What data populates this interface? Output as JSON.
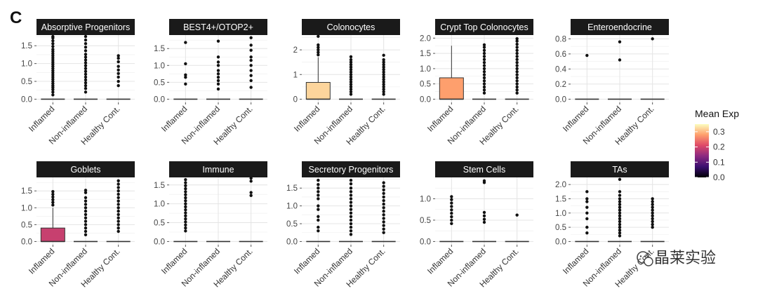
{
  "panel_label": "C",
  "legend": {
    "title": "Mean Exp",
    "ticks": [
      "0.3",
      "0.2",
      "0.1",
      "0.0"
    ],
    "range": [
      0,
      0.35
    ],
    "tick_values": [
      0.3,
      0.2,
      0.1,
      0.0
    ],
    "colors": [
      "#000004",
      "#3b0f70",
      "#8c2981",
      "#de4968",
      "#fe9f6d",
      "#fcfdbf"
    ]
  },
  "watermark": {
    "text": "晶莱实验"
  },
  "chart_data": [
    {
      "type": "box",
      "title": "Absorptive Progenitors",
      "categories": [
        "Inflamed",
        "Non-inflamed",
        "Healthy Cont."
      ],
      "ylim": [
        0,
        1.8
      ],
      "yticks": [
        "0.0",
        "0.5",
        "1.0",
        "1.5"
      ],
      "ytick_values": [
        0,
        0.5,
        1.0,
        1.5
      ],
      "boxes": [
        {
          "q1": 0,
          "median": 0,
          "q3": 0,
          "whisker_hi": 0,
          "mean_exp": 0.02,
          "outliers": [
            0.12,
            0.2,
            0.27,
            0.33,
            0.38,
            0.44,
            0.5,
            0.56,
            0.62,
            0.68,
            0.74,
            0.8,
            0.86,
            0.92,
            0.98,
            1.04,
            1.1,
            1.16,
            1.22,
            1.28,
            1.34,
            1.4,
            1.48,
            1.56,
            1.64,
            1.72,
            1.76
          ]
        },
        {
          "q1": 0,
          "median": 0,
          "q3": 0,
          "whisker_hi": 0,
          "mean_exp": 0.02,
          "outliers": [
            0.2,
            0.3,
            0.38,
            0.46,
            0.54,
            0.62,
            0.7,
            0.78,
            0.86,
            0.94,
            1.02,
            1.1,
            1.18,
            1.26,
            1.36,
            1.46,
            1.56,
            1.66,
            1.76
          ]
        },
        {
          "q1": 0,
          "median": 0,
          "q3": 0,
          "whisker_hi": 0,
          "mean_exp": 0.02,
          "outliers": [
            0.38,
            0.5,
            0.62,
            0.72,
            0.82,
            0.92,
            1.05,
            1.15,
            1.22
          ]
        }
      ]
    },
    {
      "type": "box",
      "title": "BEST4+/OTOP2+",
      "categories": [
        "Inflamed",
        "Non-inflamed",
        "Healthy Cont."
      ],
      "ylim": [
        0,
        1.9
      ],
      "yticks": [
        "0.0",
        "0.5",
        "1.0",
        "1.5"
      ],
      "ytick_values": [
        0,
        0.5,
        1.0,
        1.5
      ],
      "boxes": [
        {
          "q1": 0,
          "median": 0,
          "q3": 0,
          "whisker_hi": 0,
          "mean_exp": 0.02,
          "outliers": [
            0.45,
            0.65,
            0.72,
            1.05,
            1.68
          ]
        },
        {
          "q1": 0,
          "median": 0,
          "q3": 0,
          "whisker_hi": 0,
          "mean_exp": 0.02,
          "outliers": [
            0.3,
            0.45,
            0.55,
            0.65,
            0.75,
            0.85,
            1.0,
            1.1,
            1.25,
            1.72
          ]
        },
        {
          "q1": 0,
          "median": 0,
          "q3": 0,
          "whisker_hi": 0,
          "mean_exp": 0.02,
          "outliers": [
            0.35,
            0.55,
            0.7,
            0.85,
            1.0,
            1.15,
            1.25,
            1.45,
            1.6,
            1.82
          ]
        }
      ]
    },
    {
      "type": "box",
      "title": "Colonocytes",
      "categories": [
        "Inflamed",
        "Non-inflamed",
        "Healthy Cont."
      ],
      "ylim": [
        0,
        2.6
      ],
      "yticks": [
        "0",
        "1",
        "2"
      ],
      "ytick_values": [
        0,
        1,
        2
      ],
      "boxes": [
        {
          "q1": 0,
          "median": 0,
          "q3": 0.68,
          "whisker_hi": 1.7,
          "mean_exp": 0.32,
          "outliers": [
            1.8,
            1.9,
            2.0,
            2.1,
            2.2,
            2.55
          ]
        },
        {
          "q1": 0,
          "median": 0,
          "q3": 0,
          "whisker_hi": 0,
          "mean_exp": 0.05,
          "outliers": [
            0.2,
            0.3,
            0.4,
            0.5,
            0.6,
            0.7,
            0.8,
            0.9,
            1.0,
            1.1,
            1.2,
            1.3,
            1.4,
            1.5,
            1.6,
            1.72
          ]
        },
        {
          "q1": 0,
          "median": 0,
          "q3": 0,
          "whisker_hi": 0,
          "mean_exp": 0.05,
          "outliers": [
            0.2,
            0.3,
            0.4,
            0.5,
            0.6,
            0.7,
            0.8,
            0.9,
            1.0,
            1.1,
            1.2,
            1.3,
            1.4,
            1.5,
            1.6,
            1.78
          ]
        }
      ]
    },
    {
      "type": "box",
      "title": "Crypt Top Colonocytes",
      "categories": [
        "Inflamed",
        "Non-inflamed",
        "Healthy Cont."
      ],
      "ylim": [
        0,
        2.1
      ],
      "yticks": [
        "0.0",
        "0.5",
        "1.0",
        "1.5",
        "2.0"
      ],
      "ytick_values": [
        0,
        0.5,
        1.0,
        1.5,
        2.0
      ],
      "boxes": [
        {
          "q1": 0,
          "median": 0,
          "q3": 0.7,
          "whisker_hi": 1.75,
          "mean_exp": 0.28,
          "outliers": []
        },
        {
          "q1": 0,
          "median": 0,
          "q3": 0,
          "whisker_hi": 0,
          "mean_exp": 0.05,
          "outliers": [
            0.2,
            0.3,
            0.4,
            0.5,
            0.6,
            0.7,
            0.8,
            0.9,
            1.0,
            1.1,
            1.2,
            1.3,
            1.4,
            1.5,
            1.6,
            1.7,
            1.78
          ]
        },
        {
          "q1": 0,
          "median": 0,
          "q3": 0,
          "whisker_hi": 0,
          "mean_exp": 0.05,
          "outliers": [
            0.2,
            0.3,
            0.4,
            0.5,
            0.6,
            0.7,
            0.8,
            0.9,
            1.0,
            1.1,
            1.2,
            1.3,
            1.4,
            1.5,
            1.6,
            1.7,
            1.8,
            1.9,
            1.98
          ]
        }
      ]
    },
    {
      "type": "box",
      "title": "Enteroendocrine",
      "categories": [
        "Inflamed",
        "Non-inflamed",
        "Healthy Cont."
      ],
      "ylim": [
        0,
        0.85
      ],
      "yticks": [
        "0.0",
        "0.2",
        "0.4",
        "0.6",
        "0.8"
      ],
      "ytick_values": [
        0,
        0.2,
        0.4,
        0.6,
        0.8
      ],
      "boxes": [
        {
          "q1": 0,
          "median": 0,
          "q3": 0,
          "whisker_hi": 0,
          "mean_exp": 0.01,
          "outliers": [
            0.58
          ]
        },
        {
          "q1": 0,
          "median": 0,
          "q3": 0,
          "whisker_hi": 0,
          "mean_exp": 0.01,
          "outliers": [
            0.52,
            0.76
          ]
        },
        {
          "q1": 0,
          "median": 0,
          "q3": 0,
          "whisker_hi": 0,
          "mean_exp": 0.01,
          "outliers": [
            0.8
          ]
        }
      ]
    },
    {
      "type": "box",
      "title": "Goblets",
      "categories": [
        "Inflamed",
        "Non-inflamed",
        "Healthy Cont."
      ],
      "ylim": [
        0,
        1.9
      ],
      "yticks": [
        "0.0",
        "0.5",
        "1.0",
        "1.5"
      ],
      "ytick_values": [
        0,
        0.5,
        1.0,
        1.5
      ],
      "boxes": [
        {
          "q1": 0,
          "median": 0,
          "q3": 0.4,
          "whisker_hi": 1.0,
          "mean_exp": 0.19,
          "outliers": [
            1.08,
            1.16,
            1.24,
            1.32,
            1.4,
            1.48
          ]
        },
        {
          "q1": 0,
          "median": 0,
          "q3": 0,
          "whisker_hi": 0,
          "mean_exp": 0.02,
          "outliers": [
            0.2,
            0.3,
            0.4,
            0.5,
            0.6,
            0.7,
            0.8,
            0.9,
            1.0,
            1.1,
            1.2,
            1.3,
            1.45,
            1.52
          ]
        },
        {
          "q1": 0,
          "median": 0,
          "q3": 0,
          "whisker_hi": 0,
          "mean_exp": 0.02,
          "outliers": [
            0.3,
            0.4,
            0.5,
            0.6,
            0.7,
            0.8,
            0.9,
            1.0,
            1.1,
            1.2,
            1.3,
            1.4,
            1.5,
            1.6,
            1.7,
            1.8
          ]
        }
      ]
    },
    {
      "type": "box",
      "title": "Immune",
      "categories": [
        "Inflamed",
        "Non-inflamed",
        "Healthy Cont."
      ],
      "ylim": [
        0,
        1.7
      ],
      "yticks": [
        "0.0",
        "0.5",
        "1.0",
        "1.5"
      ],
      "ytick_values": [
        0,
        0.5,
        1.0,
        1.5
      ],
      "boxes": [
        {
          "q1": 0,
          "median": 0,
          "q3": 0,
          "whisker_hi": 0,
          "mean_exp": 0.02,
          "outliers": [
            0.28,
            0.36,
            0.44,
            0.52,
            0.6,
            0.68,
            0.76,
            0.84,
            0.92,
            1.0,
            1.08,
            1.16,
            1.24,
            1.32,
            1.4,
            1.48,
            1.56,
            1.64
          ]
        },
        {
          "q1": 0,
          "median": 0,
          "q3": 0,
          "whisker_hi": 0,
          "mean_exp": 0.0,
          "outliers": []
        },
        {
          "q1": 0,
          "median": 0,
          "q3": 0,
          "whisker_hi": 0,
          "mean_exp": 0.01,
          "outliers": [
            1.22,
            1.3,
            1.6,
            1.68
          ]
        }
      ]
    },
    {
      "type": "box",
      "title": "Secretory Progenitors",
      "categories": [
        "Inflamed",
        "Non-inflamed",
        "Healthy Cont."
      ],
      "ylim": [
        0,
        1.8
      ],
      "yticks": [
        "0.0",
        "0.5",
        "1.0",
        "1.5"
      ],
      "ytick_values": [
        0,
        0.5,
        1.0,
        1.5
      ],
      "boxes": [
        {
          "q1": 0,
          "median": 0,
          "q3": 0,
          "whisker_hi": 0,
          "mean_exp": 0.02,
          "outliers": [
            0.3,
            0.4,
            0.6,
            0.7,
            0.9,
            1.0,
            1.2,
            1.3,
            1.4,
            1.5,
            1.6,
            1.72
          ]
        },
        {
          "q1": 0,
          "median": 0,
          "q3": 0,
          "whisker_hi": 0,
          "mean_exp": 0.02,
          "outliers": [
            0.2,
            0.3,
            0.4,
            0.5,
            0.6,
            0.7,
            0.8,
            0.9,
            1.0,
            1.1,
            1.2,
            1.3,
            1.4,
            1.5,
            1.62,
            1.72
          ]
        },
        {
          "q1": 0,
          "median": 0,
          "q3": 0,
          "whisker_hi": 0,
          "mean_exp": 0.02,
          "outliers": [
            0.25,
            0.35,
            0.45,
            0.55,
            0.65,
            0.75,
            0.85,
            0.95,
            1.05,
            1.15,
            1.25,
            1.35,
            1.45,
            1.55,
            1.65
          ]
        }
      ]
    },
    {
      "type": "box",
      "title": "Stem Cells",
      "categories": [
        "Inflamed",
        "Non-inflamed",
        "Healthy Cont."
      ],
      "ylim": [
        0,
        1.5
      ],
      "yticks": [
        "0.0",
        "0.5",
        "1.0"
      ],
      "ytick_values": [
        0,
        0.5,
        1.0
      ],
      "boxes": [
        {
          "q1": 0,
          "median": 0,
          "q3": 0,
          "whisker_hi": 0,
          "mean_exp": 0.02,
          "outliers": [
            0.42,
            0.5,
            0.58,
            0.66,
            0.74,
            0.82,
            0.9,
            0.98,
            1.05
          ]
        },
        {
          "q1": 0,
          "median": 0,
          "q3": 0,
          "whisker_hi": 0,
          "mean_exp": 0.02,
          "outliers": [
            0.45,
            0.52,
            0.6,
            0.68,
            1.38,
            1.42
          ]
        },
        {
          "q1": 0,
          "median": 0,
          "q3": 0,
          "whisker_hi": 0,
          "mean_exp": 0.01,
          "outliers": [
            0.62
          ]
        }
      ]
    },
    {
      "type": "box",
      "title": "TAs",
      "categories": [
        "Inflamed",
        "Non-inflamed",
        "Healthy Cont."
      ],
      "ylim": [
        0,
        2.25
      ],
      "yticks": [
        "0.0",
        "0.5",
        "1.0",
        "1.5",
        "2.0"
      ],
      "ytick_values": [
        0,
        0.5,
        1.0,
        1.5,
        2.0
      ],
      "boxes": [
        {
          "q1": 0,
          "median": 0,
          "q3": 0,
          "whisker_hi": 0,
          "mean_exp": 0.02,
          "outliers": [
            0.3,
            0.5,
            0.8,
            1.0,
            1.2,
            1.4,
            1.5,
            1.75
          ]
        },
        {
          "q1": 0,
          "median": 0,
          "q3": 0,
          "whisker_hi": 0,
          "mean_exp": 0.02,
          "outliers": [
            0.2,
            0.3,
            0.4,
            0.5,
            0.6,
            0.7,
            0.8,
            0.9,
            1.0,
            1.1,
            1.2,
            1.3,
            1.4,
            1.5,
            1.62,
            1.75,
            2.18
          ]
        },
        {
          "q1": 0,
          "median": 0,
          "q3": 0,
          "whisker_hi": 0,
          "mean_exp": 0.02,
          "outliers": [
            0.5,
            0.6,
            0.7,
            0.8,
            0.9,
            1.0,
            1.1,
            1.2,
            1.3,
            1.4,
            1.5
          ]
        }
      ]
    }
  ]
}
